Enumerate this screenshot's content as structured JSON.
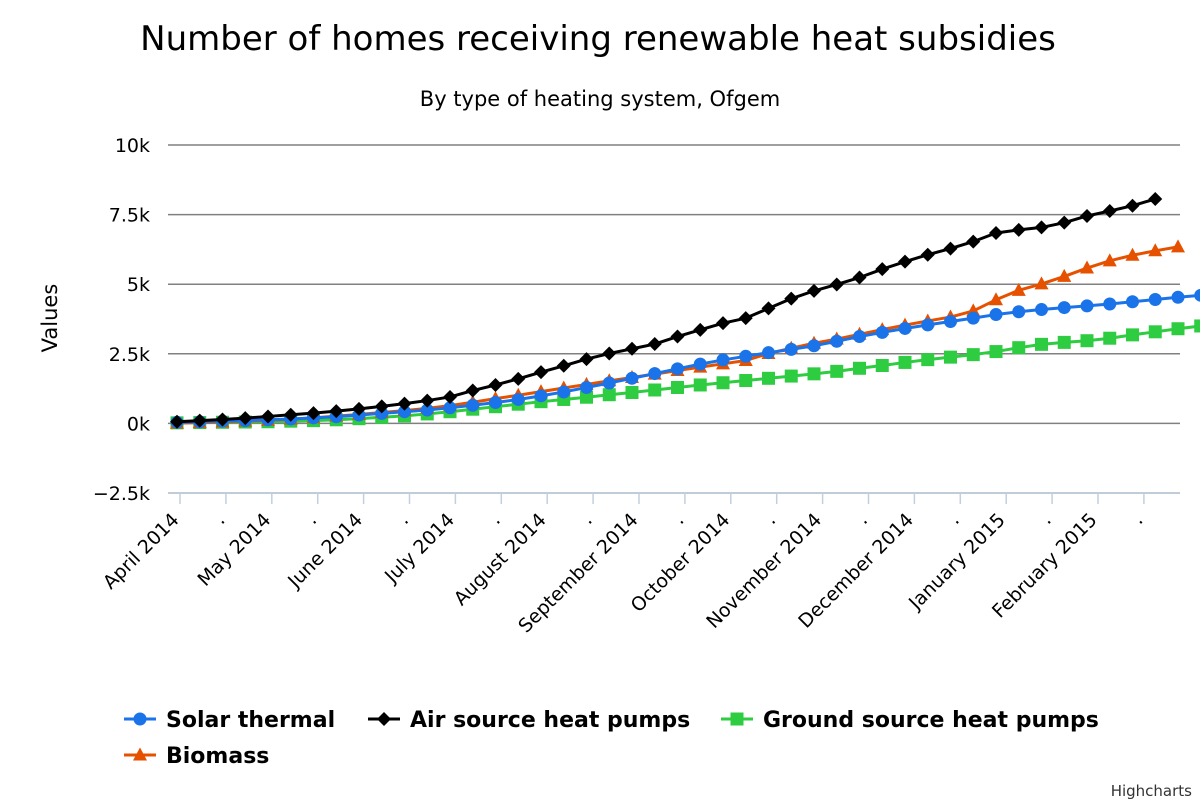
{
  "chart_data": {
    "type": "line",
    "title": "Number of homes receiving renewable heat subsidies",
    "subtitle": "By type of heating system, Ofgem",
    "ylabel": "Values",
    "xlabel": "",
    "ylim": [
      -2500,
      10000
    ],
    "y_ticks": [
      -2500,
      0,
      2500,
      5000,
      7500,
      10000
    ],
    "y_tick_labels": [
      "−2.5k",
      "0k",
      "2.5k",
      "5k",
      "7.5k",
      "10k"
    ],
    "x_tick_labels": [
      "April 2014",
      ".",
      "May 2014",
      ".",
      "June 2014",
      ".",
      "July 2014",
      ".",
      "August 2014",
      ".",
      "September 2014",
      ".",
      "October 2014",
      ".",
      "November 2014",
      ".",
      "December 2014",
      ".",
      "January 2015",
      ".",
      "February 2015",
      "."
    ],
    "grid": true,
    "legend_position": "bottom",
    "series": [
      {
        "name": "Solar thermal",
        "color": "#1a73e8",
        "marker": "circle",
        "values": [
          40,
          60,
          80,
          100,
          130,
          160,
          200,
          240,
          300,
          360,
          420,
          480,
          560,
          650,
          750,
          860,
          990,
          1130,
          1290,
          1450,
          1620,
          1790,
          1960,
          2130,
          2280,
          2410,
          2540,
          2660,
          2790,
          2950,
          3120,
          3270,
          3410,
          3540,
          3660,
          3780,
          3910,
          4010,
          4090,
          4160,
          4220,
          4290,
          4370,
          4450,
          4530,
          4600,
          4700
        ]
      },
      {
        "name": "Air source heat pumps",
        "color": "#000000",
        "marker": "diamond",
        "values": [
          60,
          100,
          140,
          190,
          250,
          310,
          370,
          440,
          520,
          610,
          710,
          820,
          950,
          1180,
          1380,
          1600,
          1840,
          2070,
          2310,
          2510,
          2680,
          2850,
          3120,
          3360,
          3600,
          3780,
          4130,
          4480,
          4760,
          4990,
          5240,
          5540,
          5810,
          6060,
          6280,
          6530,
          6840,
          6950,
          7040,
          7210,
          7450,
          7630,
          7820,
          8060
        ]
      },
      {
        "name": "Ground source heat pumps",
        "color": "#2ecc40",
        "marker": "square",
        "values": [
          20,
          30,
          40,
          50,
          60,
          80,
          100,
          130,
          170,
          220,
          270,
          340,
          420,
          510,
          600,
          690,
          780,
          860,
          940,
          1030,
          1110,
          1200,
          1290,
          1380,
          1460,
          1540,
          1620,
          1700,
          1780,
          1870,
          1980,
          2080,
          2190,
          2290,
          2380,
          2470,
          2580,
          2720,
          2840,
          2910,
          2970,
          3060,
          3180,
          3290,
          3400,
          3500
        ]
      },
      {
        "name": "Biomass",
        "color": "#e65100",
        "marker": "triangle",
        "values": [
          10,
          30,
          50,
          80,
          110,
          150,
          200,
          260,
          320,
          390,
          460,
          540,
          640,
          760,
          890,
          1010,
          1140,
          1270,
          1400,
          1530,
          1650,
          1770,
          1900,
          2020,
          2140,
          2260,
          2510,
          2700,
          2880,
          3030,
          3200,
          3370,
          3530,
          3680,
          3820,
          4040,
          4440,
          4780,
          5010,
          5280,
          5580,
          5840,
          6040,
          6200,
          6340
        ]
      }
    ]
  },
  "credits": "Highcharts"
}
